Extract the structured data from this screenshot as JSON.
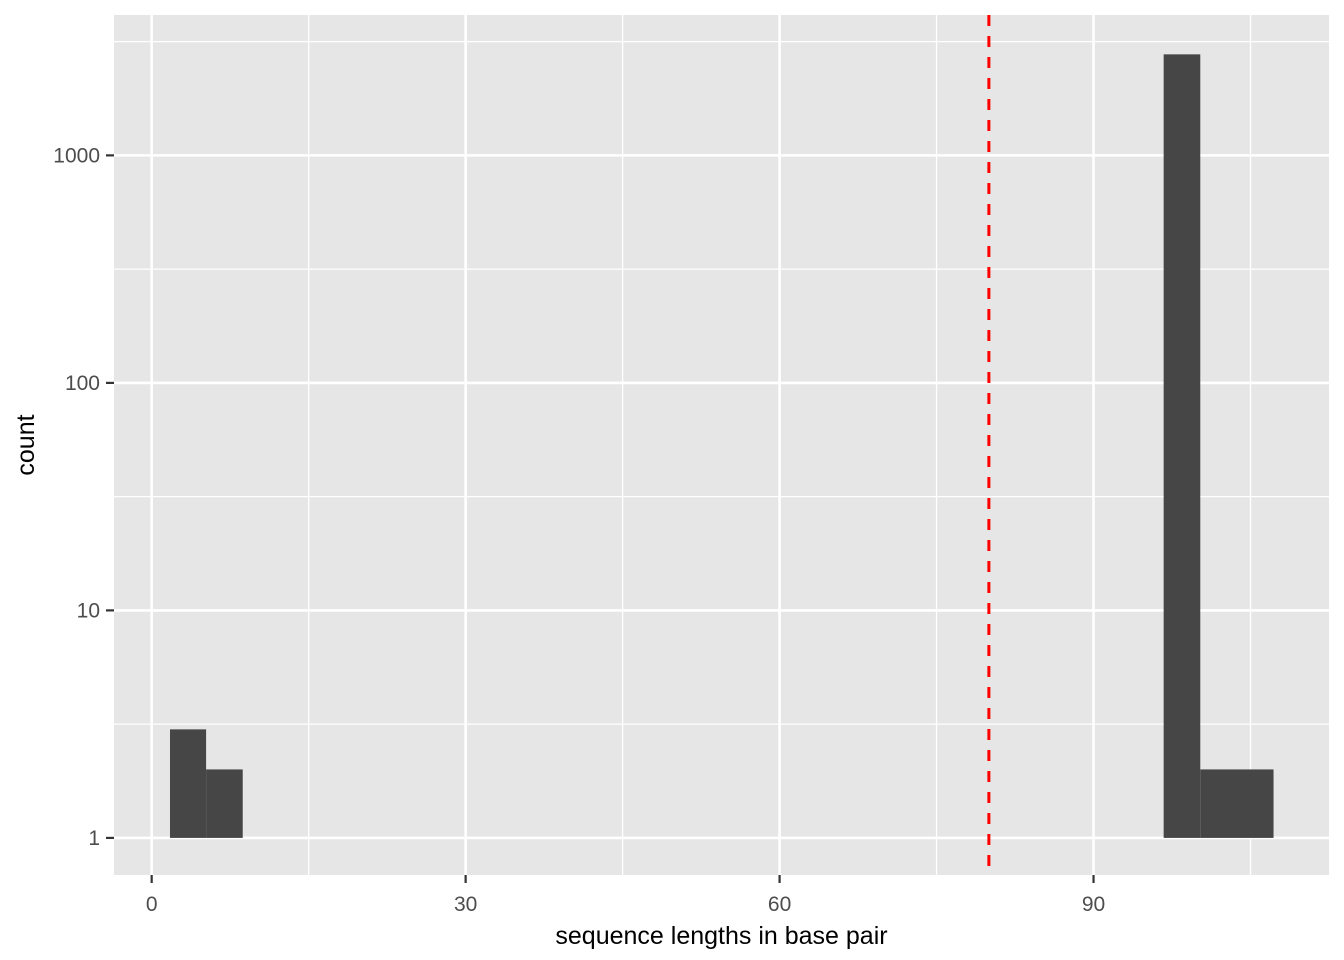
{
  "figure": {
    "kind": "ggplot-histogram",
    "background": "#FFFFFF"
  },
  "chart_data": {
    "type": "bar",
    "subtype": "histogram-log-y",
    "title": "",
    "xlabel": "sequence lengths in base pair",
    "ylabel": "count",
    "grid": "on",
    "legend": "none",
    "x_range": [
      -3.6,
      112.5
    ],
    "x_major_ticks": [
      0,
      30,
      60,
      90
    ],
    "x_minor_breaks": [
      15,
      45,
      75,
      105
    ],
    "y_scale": "log10",
    "y_range_log10": [
      -0.163,
      3.617
    ],
    "y_major_ticks": [
      1,
      10,
      100,
      1000
    ],
    "y_minor_breaks_log10": [
      0.5,
      1.5,
      2.5,
      3.5
    ],
    "bar_baseline_count": 1,
    "bars": [
      {
        "x0": 1.75,
        "x1": 5.2,
        "count": 3
      },
      {
        "x0": 5.2,
        "x1": 8.7,
        "count": 2
      },
      {
        "x0": 96.7,
        "x1": 100.2,
        "count": 2780
      },
      {
        "x0": 100.2,
        "x1": 107.2,
        "count": 2
      }
    ],
    "vline": {
      "x": 80,
      "style": "dashed",
      "color": "#FF0000"
    },
    "colors": {
      "panel_background": "#E6E6E6",
      "gridline_major": "#FFFFFF",
      "gridline_minor": "#FFFFFF",
      "bar_fill": "#464646",
      "tick_label": "#4D4D4D",
      "tick_mark": "#333333",
      "axis_title": "#000000"
    }
  }
}
